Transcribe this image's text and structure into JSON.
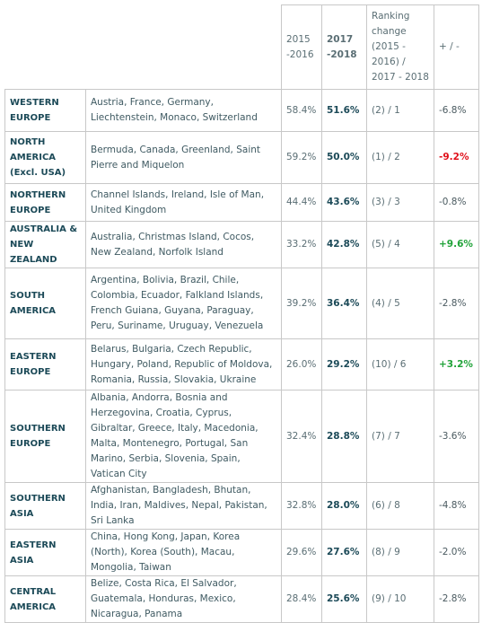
{
  "table": {
    "header": [
      "2015 -2016",
      "2017 -2018",
      "Ranking change (2015 - 2016) / 2017 - 2018",
      "+ / -"
    ],
    "rows": [
      {
        "region": "WESTERN EUROPE",
        "countries": "Austria, France, Germany, Liechtenstein, Monaco, Switzerland",
        "y2015": "58.4%",
        "y2017": "51.6%",
        "ranking": "(2) / 1",
        "change": "-6.8%",
        "change_color": "#4a5a60"
      },
      {
        "region": "NORTH AMERICA (Excl. USA)",
        "countries": "Bermuda, Canada, Greenland, Saint Pierre and Miquelon",
        "y2015": "59.2%",
        "y2017": "50.0%",
        "ranking": "(1) / 2",
        "change": "-9.2%",
        "change_color": "#e0101a"
      },
      {
        "region": "NORTHERN EUROPE",
        "countries": "Channel Islands, Ireland, Isle of Man, United Kingdom",
        "y2015": "44.4%",
        "y2017": "43.6%",
        "ranking": "(3) / 3",
        "change": "-0.8%",
        "change_color": "#4a5a60"
      },
      {
        "region": "AUSTRALIA & NEW ZEALAND",
        "countries": "Australia, Christmas Island, Cocos, New Zealand, Norfolk Island",
        "y2015": "33.2%",
        "y2017": "42.8%",
        "ranking": "(5) / 4",
        "change": "+9.6%",
        "change_color": "#22a33a"
      },
      {
        "region": "SOUTH AMERICA",
        "countries": "Argentina, Bolivia, Brazil, Chile, Colombia, Ecuador, Falkland Islands, French Guiana, Guyana, Paraguay, Peru, Suriname, Uruguay, Venezuela",
        "y2015": "39.2%",
        "y2017": "36.4%",
        "ranking": "(4) / 5",
        "change": "-2.8%",
        "change_color": "#4a5a60"
      },
      {
        "region": "EASTERN EUROPE",
        "countries": "Belarus, Bulgaria, Czech Republic, Hungary, Poland, Republic of Moldova, Romania, Russia, Slovakia, Ukraine",
        "y2015": "26.0%",
        "y2017": "29.2%",
        "ranking": "(10) / 6",
        "change": "+3.2%",
        "change_color": "#22a33a"
      },
      {
        "region": "SOUTHERN EUROPE",
        "countries": "Albania, Andorra, Bosnia and Herzegovina, Croatia, Cyprus, Gibraltar, Greece, Italy, Macedonia, Malta, Montenegro, Portugal, San Marino, Serbia, Slovenia, Spain, Vatican City",
        "y2015": "32.4%",
        "y2017": "28.8%",
        "ranking": "(7) / 7",
        "change": "-3.6%",
        "change_color": "#4a5a60"
      },
      {
        "region": "SOUTHERN ASIA",
        "countries": "Afghanistan, Bangladesh, Bhutan, India, Iran, Maldives, Nepal, Pakistan, Sri Lanka",
        "y2015": "32.8%",
        "y2017": "28.0%",
        "ranking": "(6) / 8",
        "change": "-4.8%",
        "change_color": "#4a5a60"
      },
      {
        "region": "EASTERN ASIA",
        "countries": "China, Hong Kong, Japan, Korea (North), Korea (South), Macau, Mongolia, Taiwan",
        "y2015": "29.6%",
        "y2017": "27.6%",
        "ranking": "(8) / 9",
        "change": "-2.0%",
        "change_color": "#4a5a60"
      },
      {
        "region": "CENTRAL AMERICA",
        "countries": "Belize, Costa Rica, El Salvador, Guatemala, Honduras, Mexico, Nicaragua, Panama",
        "y2015": "28.4%",
        "y2017": "25.6%",
        "ranking": "(9) / 10",
        "change": "-2.8%",
        "change_color": "#4a5a60"
      }
    ]
  }
}
